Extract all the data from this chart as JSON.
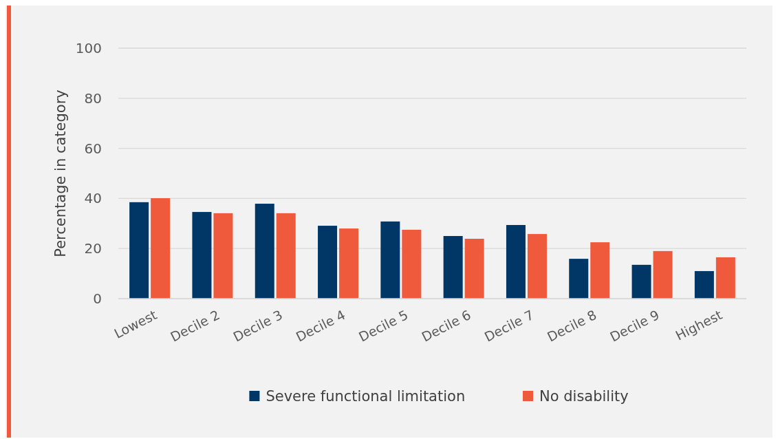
{
  "chart_data": {
    "type": "bar",
    "ylabel": "Percentage in category",
    "categories": [
      "Lowest",
      "Decile 2",
      "Decile 3",
      "Decile 4",
      "Decile 5",
      "Decile 6",
      "Decile 7",
      "Decile 8",
      "Decile 9",
      "Highest"
    ],
    "series": [
      {
        "name": "Severe functional limitation",
        "color": "#003767",
        "values": [
          38.5,
          34.6,
          37.9,
          29.1,
          30.8,
          25.0,
          29.4,
          15.9,
          13.5,
          11.0
        ]
      },
      {
        "name": "No disability",
        "color": "#f05a3c",
        "values": [
          40.1,
          34.1,
          34.1,
          28.0,
          27.5,
          23.9,
          25.8,
          22.5,
          19.0,
          16.5
        ]
      }
    ],
    "ylim": [
      0,
      100
    ],
    "yticks": [
      0,
      20,
      40,
      60,
      80,
      100
    ],
    "grid": "y",
    "legend": "bottom"
  }
}
